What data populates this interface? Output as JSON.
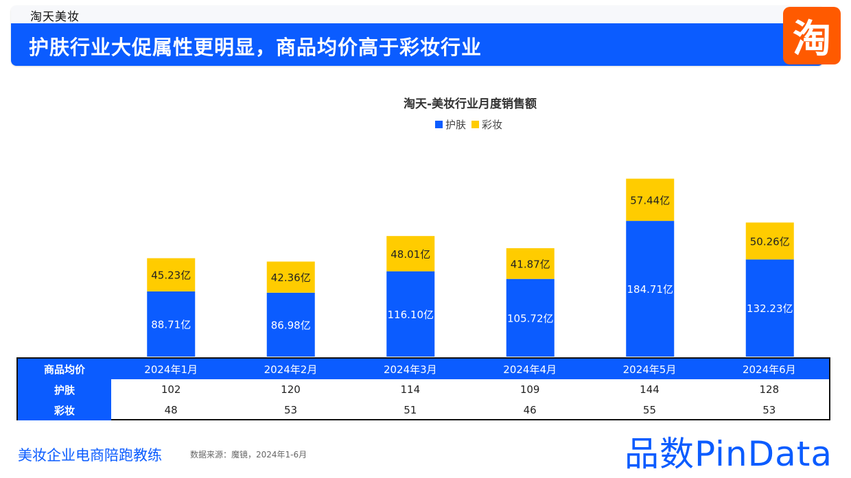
{
  "header": {
    "brand": "淘天美妆",
    "headline": "护肤行业大促属性更明显，商品均价高于彩妆行业",
    "logo_char": "淘"
  },
  "colors": {
    "skincare": "#0b5cff",
    "makeup": "#ffcc00",
    "accent": "#0b5cff",
    "logo_bg": "#ff5a00"
  },
  "chart_data": {
    "type": "bar",
    "stacked": true,
    "title": "淘天-美妆行业月度销售额",
    "categories": [
      "2024年1月",
      "2024年2月",
      "2024年3月",
      "2024年4月",
      "2024年5月",
      "2024年6月"
    ],
    "series": [
      {
        "name": "护肤",
        "values": [
          88.71,
          86.98,
          116.1,
          105.72,
          184.71,
          132.23
        ],
        "labels": [
          "88.71亿",
          "86.98亿",
          "116.10亿",
          "105.72亿",
          "184.71亿",
          "132.23亿"
        ]
      },
      {
        "name": "彩妆",
        "values": [
          45.23,
          42.36,
          48.01,
          41.87,
          57.44,
          50.26
        ],
        "labels": [
          "45.23亿",
          "42.36亿",
          "48.01亿",
          "41.87亿",
          "57.44亿",
          "50.26亿"
        ]
      }
    ],
    "ylim": [
      0,
      280
    ],
    "legend_position": "top-center",
    "grid": false
  },
  "table": {
    "header_label": "商品均价",
    "columns": [
      "2024年1月",
      "2024年2月",
      "2024年3月",
      "2024年4月",
      "2024年5月",
      "2024年6月"
    ],
    "rows": [
      {
        "label": "护肤",
        "values": [
          "102",
          "120",
          "114",
          "109",
          "144",
          "128"
        ]
      },
      {
        "label": "彩妆",
        "values": [
          "48",
          "53",
          "51",
          "46",
          "55",
          "53"
        ]
      }
    ]
  },
  "footer": {
    "left": "美妆企业电商陪跑教练",
    "source": "数据来源：魔镜，2024年1-6月",
    "brand": "品数PinData"
  }
}
